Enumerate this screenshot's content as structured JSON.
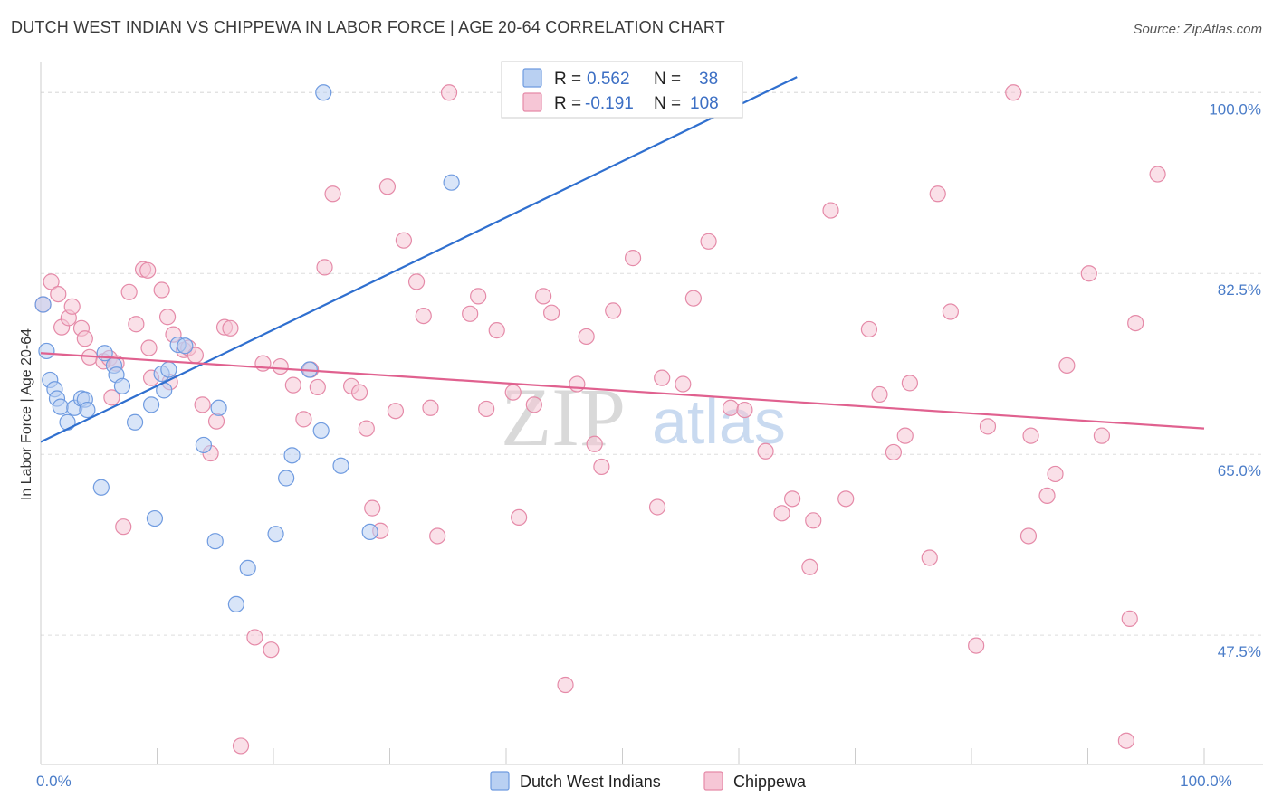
{
  "chart_data": {
    "type": "scatter",
    "title": "DUTCH WEST INDIAN VS CHIPPEWA IN LABOR FORCE | AGE 20-64 CORRELATION CHART",
    "source": "Source: ZipAtlas.com",
    "xlabel": "",
    "ylabel": "In Labor Force | Age 20-64",
    "xlim": [
      0,
      100
    ],
    "ylim": [
      35,
      103
    ],
    "x_tick_labels": [
      {
        "value": 0,
        "label": "0.0%"
      },
      {
        "value": 100,
        "label": "100.0%"
      }
    ],
    "y_tick_labels": [
      {
        "value": 100,
        "label": "100.0%"
      },
      {
        "value": 82.5,
        "label": "82.5%"
      },
      {
        "value": 65,
        "label": "65.0%"
      },
      {
        "value": 47.5,
        "label": "47.5%"
      }
    ],
    "watermark": {
      "zip": "ZIP",
      "atlas": "atlas"
    },
    "legend": [
      {
        "r_label": "R =",
        "r_value": "0.562",
        "n_label": "N =",
        "n_value": "38"
      },
      {
        "r_label": "R =",
        "r_value": "-0.191",
        "n_label": "N =",
        "n_value": "108"
      }
    ],
    "series": [
      {
        "name": "Dutch West Indians",
        "color": "#6f9be0",
        "fill": "#b9d0f2",
        "trend": {
          "x": [
            0,
            65
          ],
          "y": [
            66.2,
            101.5
          ],
          "color": "#2f6fcf"
        },
        "points": [
          [
            0.2,
            79.5
          ],
          [
            0.5,
            75
          ],
          [
            0.8,
            72.2
          ],
          [
            1.2,
            71.3
          ],
          [
            1.4,
            70.4
          ],
          [
            1.7,
            69.6
          ],
          [
            2.3,
            68.1
          ],
          [
            2.9,
            69.5
          ],
          [
            3.5,
            70.4
          ],
          [
            3.8,
            70.3
          ],
          [
            4,
            69.3
          ],
          [
            5.5,
            74.8
          ],
          [
            6.3,
            73.6
          ],
          [
            6.5,
            72.7
          ],
          [
            7,
            71.6
          ],
          [
            8.1,
            68.1
          ],
          [
            9.5,
            69.8
          ],
          [
            10.4,
            72.8
          ],
          [
            10.6,
            71.2
          ],
          [
            11,
            73.2
          ],
          [
            11.8,
            75.6
          ],
          [
            12.4,
            75.5
          ],
          [
            14,
            65.9
          ],
          [
            15.3,
            69.5
          ],
          [
            20.2,
            57.3
          ],
          [
            21.6,
            64.9
          ],
          [
            21.1,
            62.7
          ],
          [
            23.1,
            73.2
          ],
          [
            24.1,
            67.3
          ],
          [
            25.8,
            63.9
          ],
          [
            28.3,
            57.5
          ],
          [
            5.2,
            61.8
          ],
          [
            9.8,
            58.8
          ],
          [
            15,
            56.6
          ],
          [
            17.8,
            54
          ],
          [
            16.8,
            50.5
          ],
          [
            35.3,
            91.3
          ],
          [
            24.3,
            100
          ]
        ]
      },
      {
        "name": "Chippewa",
        "color": "#e58aa8",
        "fill": "#f6c6d6",
        "trend": {
          "x": [
            0,
            100
          ],
          "y": [
            74.8,
            67.5
          ],
          "color": "#e0618f"
        },
        "points": [
          [
            0.2,
            79.5
          ],
          [
            0.9,
            81.7
          ],
          [
            1.5,
            80.5
          ],
          [
            1.8,
            77.3
          ],
          [
            2.4,
            78.2
          ],
          [
            2.7,
            79.3
          ],
          [
            3.5,
            77.2
          ],
          [
            3.8,
            76.2
          ],
          [
            4.2,
            74.4
          ],
          [
            5.4,
            74
          ],
          [
            5.9,
            74.3
          ],
          [
            6.5,
            73.8
          ],
          [
            7.1,
            58
          ],
          [
            7.6,
            80.7
          ],
          [
            8.2,
            77.6
          ],
          [
            8.8,
            82.9
          ],
          [
            9.3,
            75.3
          ],
          [
            9.5,
            72.4
          ],
          [
            10.4,
            80.9
          ],
          [
            10.9,
            78.3
          ],
          [
            11.4,
            76.6
          ],
          [
            12.3,
            75.1
          ],
          [
            12.7,
            75.3
          ],
          [
            13.3,
            74.6
          ],
          [
            13.9,
            69.8
          ],
          [
            14.6,
            65.1
          ],
          [
            15.1,
            68.2
          ],
          [
            15.8,
            77.3
          ],
          [
            16.3,
            77.2
          ],
          [
            17.2,
            36.8
          ],
          [
            18.4,
            47.3
          ],
          [
            19.1,
            73.8
          ],
          [
            19.8,
            46.1
          ],
          [
            20.6,
            73.5
          ],
          [
            21.7,
            71.7
          ],
          [
            22.6,
            68.4
          ],
          [
            23.2,
            73.2
          ],
          [
            23.8,
            71.5
          ],
          [
            24.4,
            83.1
          ],
          [
            25.1,
            90.2
          ],
          [
            26.7,
            71.6
          ],
          [
            27.4,
            71
          ],
          [
            28,
            67.5
          ],
          [
            28.5,
            59.8
          ],
          [
            29.2,
            57.6
          ],
          [
            29.8,
            90.9
          ],
          [
            30.5,
            69.2
          ],
          [
            31.2,
            85.7
          ],
          [
            32.3,
            81.7
          ],
          [
            32.9,
            78.4
          ],
          [
            33.5,
            69.5
          ],
          [
            34.1,
            57.1
          ],
          [
            35.1,
            100
          ],
          [
            36.9,
            78.6
          ],
          [
            37.6,
            80.3
          ],
          [
            38.3,
            69.4
          ],
          [
            39.2,
            77
          ],
          [
            40.6,
            71
          ],
          [
            41.1,
            58.9
          ],
          [
            42.4,
            69.8
          ],
          [
            43.2,
            80.3
          ],
          [
            43.9,
            78.7
          ],
          [
            45.1,
            42.7
          ],
          [
            46.1,
            71.8
          ],
          [
            46.9,
            76.4
          ],
          [
            47.6,
            66
          ],
          [
            48.2,
            63.8
          ],
          [
            49.2,
            78.9
          ],
          [
            50.9,
            84
          ],
          [
            53,
            59.9
          ],
          [
            53.4,
            72.4
          ],
          [
            55.2,
            71.8
          ],
          [
            56.1,
            80.1
          ],
          [
            57.4,
            85.6
          ],
          [
            59.3,
            69.5
          ],
          [
            60.5,
            69.3
          ],
          [
            62.3,
            65.3
          ],
          [
            63.7,
            59.3
          ],
          [
            64.6,
            60.7
          ],
          [
            66.1,
            54.1
          ],
          [
            66.4,
            58.6
          ],
          [
            67.9,
            88.6
          ],
          [
            69.2,
            60.7
          ],
          [
            71.2,
            77.1
          ],
          [
            72.1,
            70.8
          ],
          [
            73.3,
            65.2
          ],
          [
            74.3,
            66.8
          ],
          [
            74.7,
            71.9
          ],
          [
            76.4,
            55
          ],
          [
            77.1,
            90.2
          ],
          [
            78.2,
            78.8
          ],
          [
            80.4,
            46.5
          ],
          [
            81.4,
            67.7
          ],
          [
            83.6,
            100
          ],
          [
            84.9,
            57.1
          ],
          [
            85.1,
            66.8
          ],
          [
            86.5,
            61
          ],
          [
            87.2,
            63.1
          ],
          [
            88.2,
            73.6
          ],
          [
            90.1,
            82.5
          ],
          [
            91.2,
            66.8
          ],
          [
            93.3,
            37.3
          ],
          [
            93.6,
            49.1
          ],
          [
            94.1,
            77.7
          ],
          [
            96,
            92.1
          ],
          [
            11.1,
            72
          ],
          [
            9.2,
            82.8
          ],
          [
            6.1,
            70.5
          ]
        ]
      }
    ]
  }
}
